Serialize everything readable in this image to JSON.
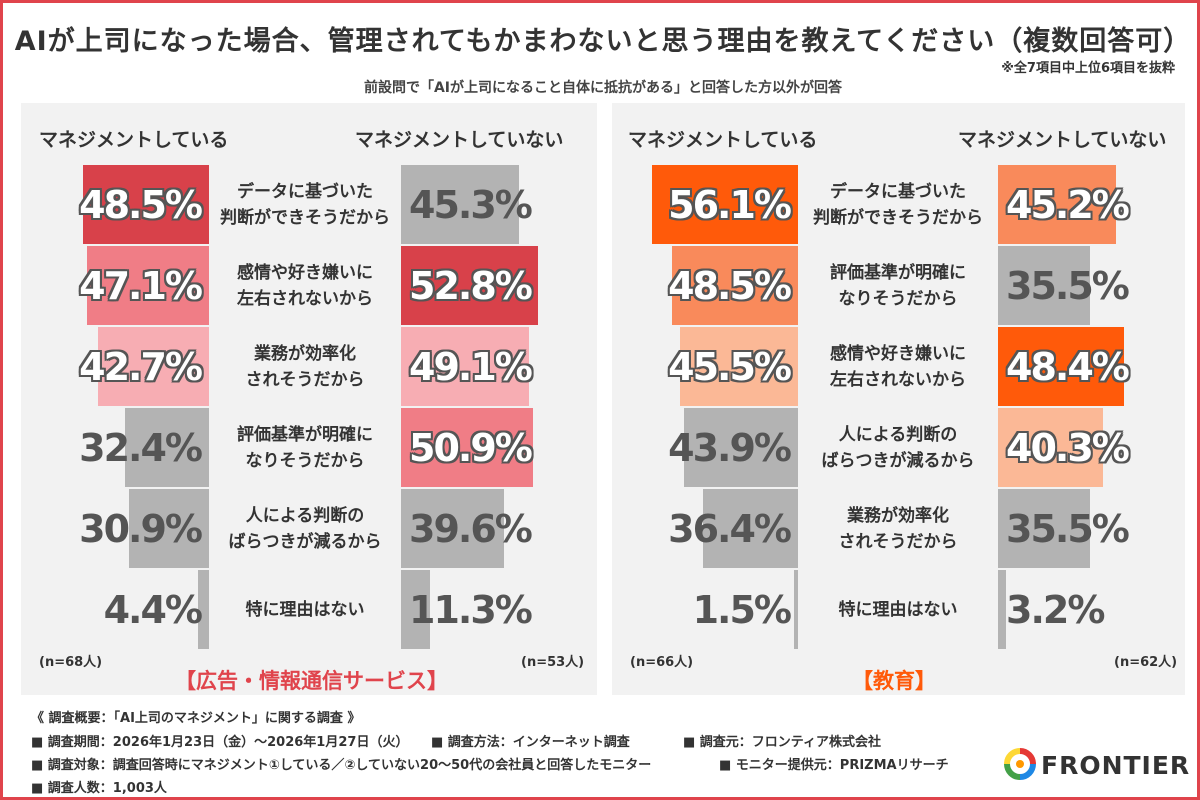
{
  "title": "AIが上司になった場合、管理されてもかまわないと思う理由を教えてください（複数回答可）",
  "note": "※全7項目中上位6項目を抜粋",
  "subtitle": "前設問で「AIが上司になること自体に抵抗がある」と回答した方以外が回答",
  "chart_data": [
    {
      "type": "bar",
      "title": "【広告・情報通信サービス】",
      "title_color": "#e0444c",
      "series": [
        {
          "name": "マネジメントしている",
          "n_label": "(n=68人)"
        },
        {
          "name": "マネジメントしていない",
          "n_label": "(n=53人)"
        }
      ],
      "rows": [
        {
          "lines": [
            "データに基づいた",
            "判断ができそうだから"
          ],
          "left": {
            "value": 48.5,
            "label": "48.5%",
            "color": "#d8414a",
            "outlined": true
          },
          "right": {
            "value": 45.3,
            "label": "45.3%",
            "color": "#b3b3b3",
            "outlined": false
          }
        },
        {
          "lines": [
            "感情や好き嫌いに",
            "左右されないから"
          ],
          "left": {
            "value": 47.1,
            "label": "47.1%",
            "color": "#f07d86",
            "outlined": true
          },
          "right": {
            "value": 52.8,
            "label": "52.8%",
            "color": "#d8414a",
            "outlined": true
          }
        },
        {
          "lines": [
            "業務が効率化",
            "されそうだから"
          ],
          "left": {
            "value": 42.7,
            "label": "42.7%",
            "color": "#f7adb3",
            "outlined": true
          },
          "right": {
            "value": 49.1,
            "label": "49.1%",
            "color": "#f7adb3",
            "outlined": true
          }
        },
        {
          "lines": [
            "評価基準が明確に",
            "なりそうだから"
          ],
          "left": {
            "value": 32.4,
            "label": "32.4%",
            "color": "#b3b3b3",
            "outlined": false
          },
          "right": {
            "value": 50.9,
            "label": "50.9%",
            "color": "#f07d86",
            "outlined": true
          }
        },
        {
          "lines": [
            "人による判断の",
            "ばらつきが減るから"
          ],
          "left": {
            "value": 30.9,
            "label": "30.9%",
            "color": "#b3b3b3",
            "outlined": false
          },
          "right": {
            "value": 39.6,
            "label": "39.6%",
            "color": "#b3b3b3",
            "outlined": false
          }
        },
        {
          "lines": [
            "特に理由はない"
          ],
          "left": {
            "value": 4.4,
            "label": "4.4%",
            "color": "#b3b3b3",
            "outlined": false
          },
          "right": {
            "value": 11.3,
            "label": "11.3%",
            "color": "#b3b3b3",
            "outlined": false
          }
        }
      ]
    },
    {
      "type": "bar",
      "title": "【教育】",
      "title_color": "#ff5a0a",
      "series": [
        {
          "name": "マネジメントしている",
          "n_label": "(n=66人)"
        },
        {
          "name": "マネジメントしていない",
          "n_label": "(n=62人)"
        }
      ],
      "rows": [
        {
          "lines": [
            "データに基づいた",
            "判断ができそうだから"
          ],
          "left": {
            "value": 56.1,
            "label": "56.1%",
            "color": "#ff5a0a",
            "outlined": true
          },
          "right": {
            "value": 45.2,
            "label": "45.2%",
            "color": "#f98a5b",
            "outlined": true
          }
        },
        {
          "lines": [
            "評価基準が明確に",
            "なりそうだから"
          ],
          "left": {
            "value": 48.5,
            "label": "48.5%",
            "color": "#f98a5b",
            "outlined": true
          },
          "right": {
            "value": 35.5,
            "label": "35.5%",
            "color": "#b3b3b3",
            "outlined": false
          }
        },
        {
          "lines": [
            "感情や好き嫌いに",
            "左右されないから"
          ],
          "left": {
            "value": 45.5,
            "label": "45.5%",
            "color": "#fbb896",
            "outlined": true
          },
          "right": {
            "value": 48.4,
            "label": "48.4%",
            "color": "#ff5a0a",
            "outlined": true
          }
        },
        {
          "lines": [
            "人による判断の",
            "ばらつきが減るから"
          ],
          "left": {
            "value": 43.9,
            "label": "43.9%",
            "color": "#b3b3b3",
            "outlined": false
          },
          "right": {
            "value": 40.3,
            "label": "40.3%",
            "color": "#fbb896",
            "outlined": true
          }
        },
        {
          "lines": [
            "業務が効率化",
            "されそうだから"
          ],
          "left": {
            "value": 36.4,
            "label": "36.4%",
            "color": "#b3b3b3",
            "outlined": false
          },
          "right": {
            "value": 35.5,
            "label": "35.5%",
            "color": "#b3b3b3",
            "outlined": false
          }
        },
        {
          "lines": [
            "特に理由はない"
          ],
          "left": {
            "value": 1.5,
            "label": "1.5%",
            "color": "#b3b3b3",
            "outlined": false
          },
          "right": {
            "value": 3.2,
            "label": "3.2%",
            "color": "#b3b3b3",
            "outlined": false
          }
        }
      ]
    }
  ],
  "footer": [
    "《 調査概要：「AI上司のマネジメント」に関する調査 》",
    "■ 調査期間：2026年1月23日（金）～2026年1月27日（火）",
    "■ 調査方法：インターネット調査",
    "■ 調査元：フロンティア株式会社",
    "■ 調査対象：調査回答時にマネジメント①している／②していない20～50代の会社員と回答したモニター",
    "■ モニター提供元：PRIZMAリサーチ",
    "■ 調査人数：1,003人"
  ],
  "logo": {
    "text": "FRONTIER"
  }
}
